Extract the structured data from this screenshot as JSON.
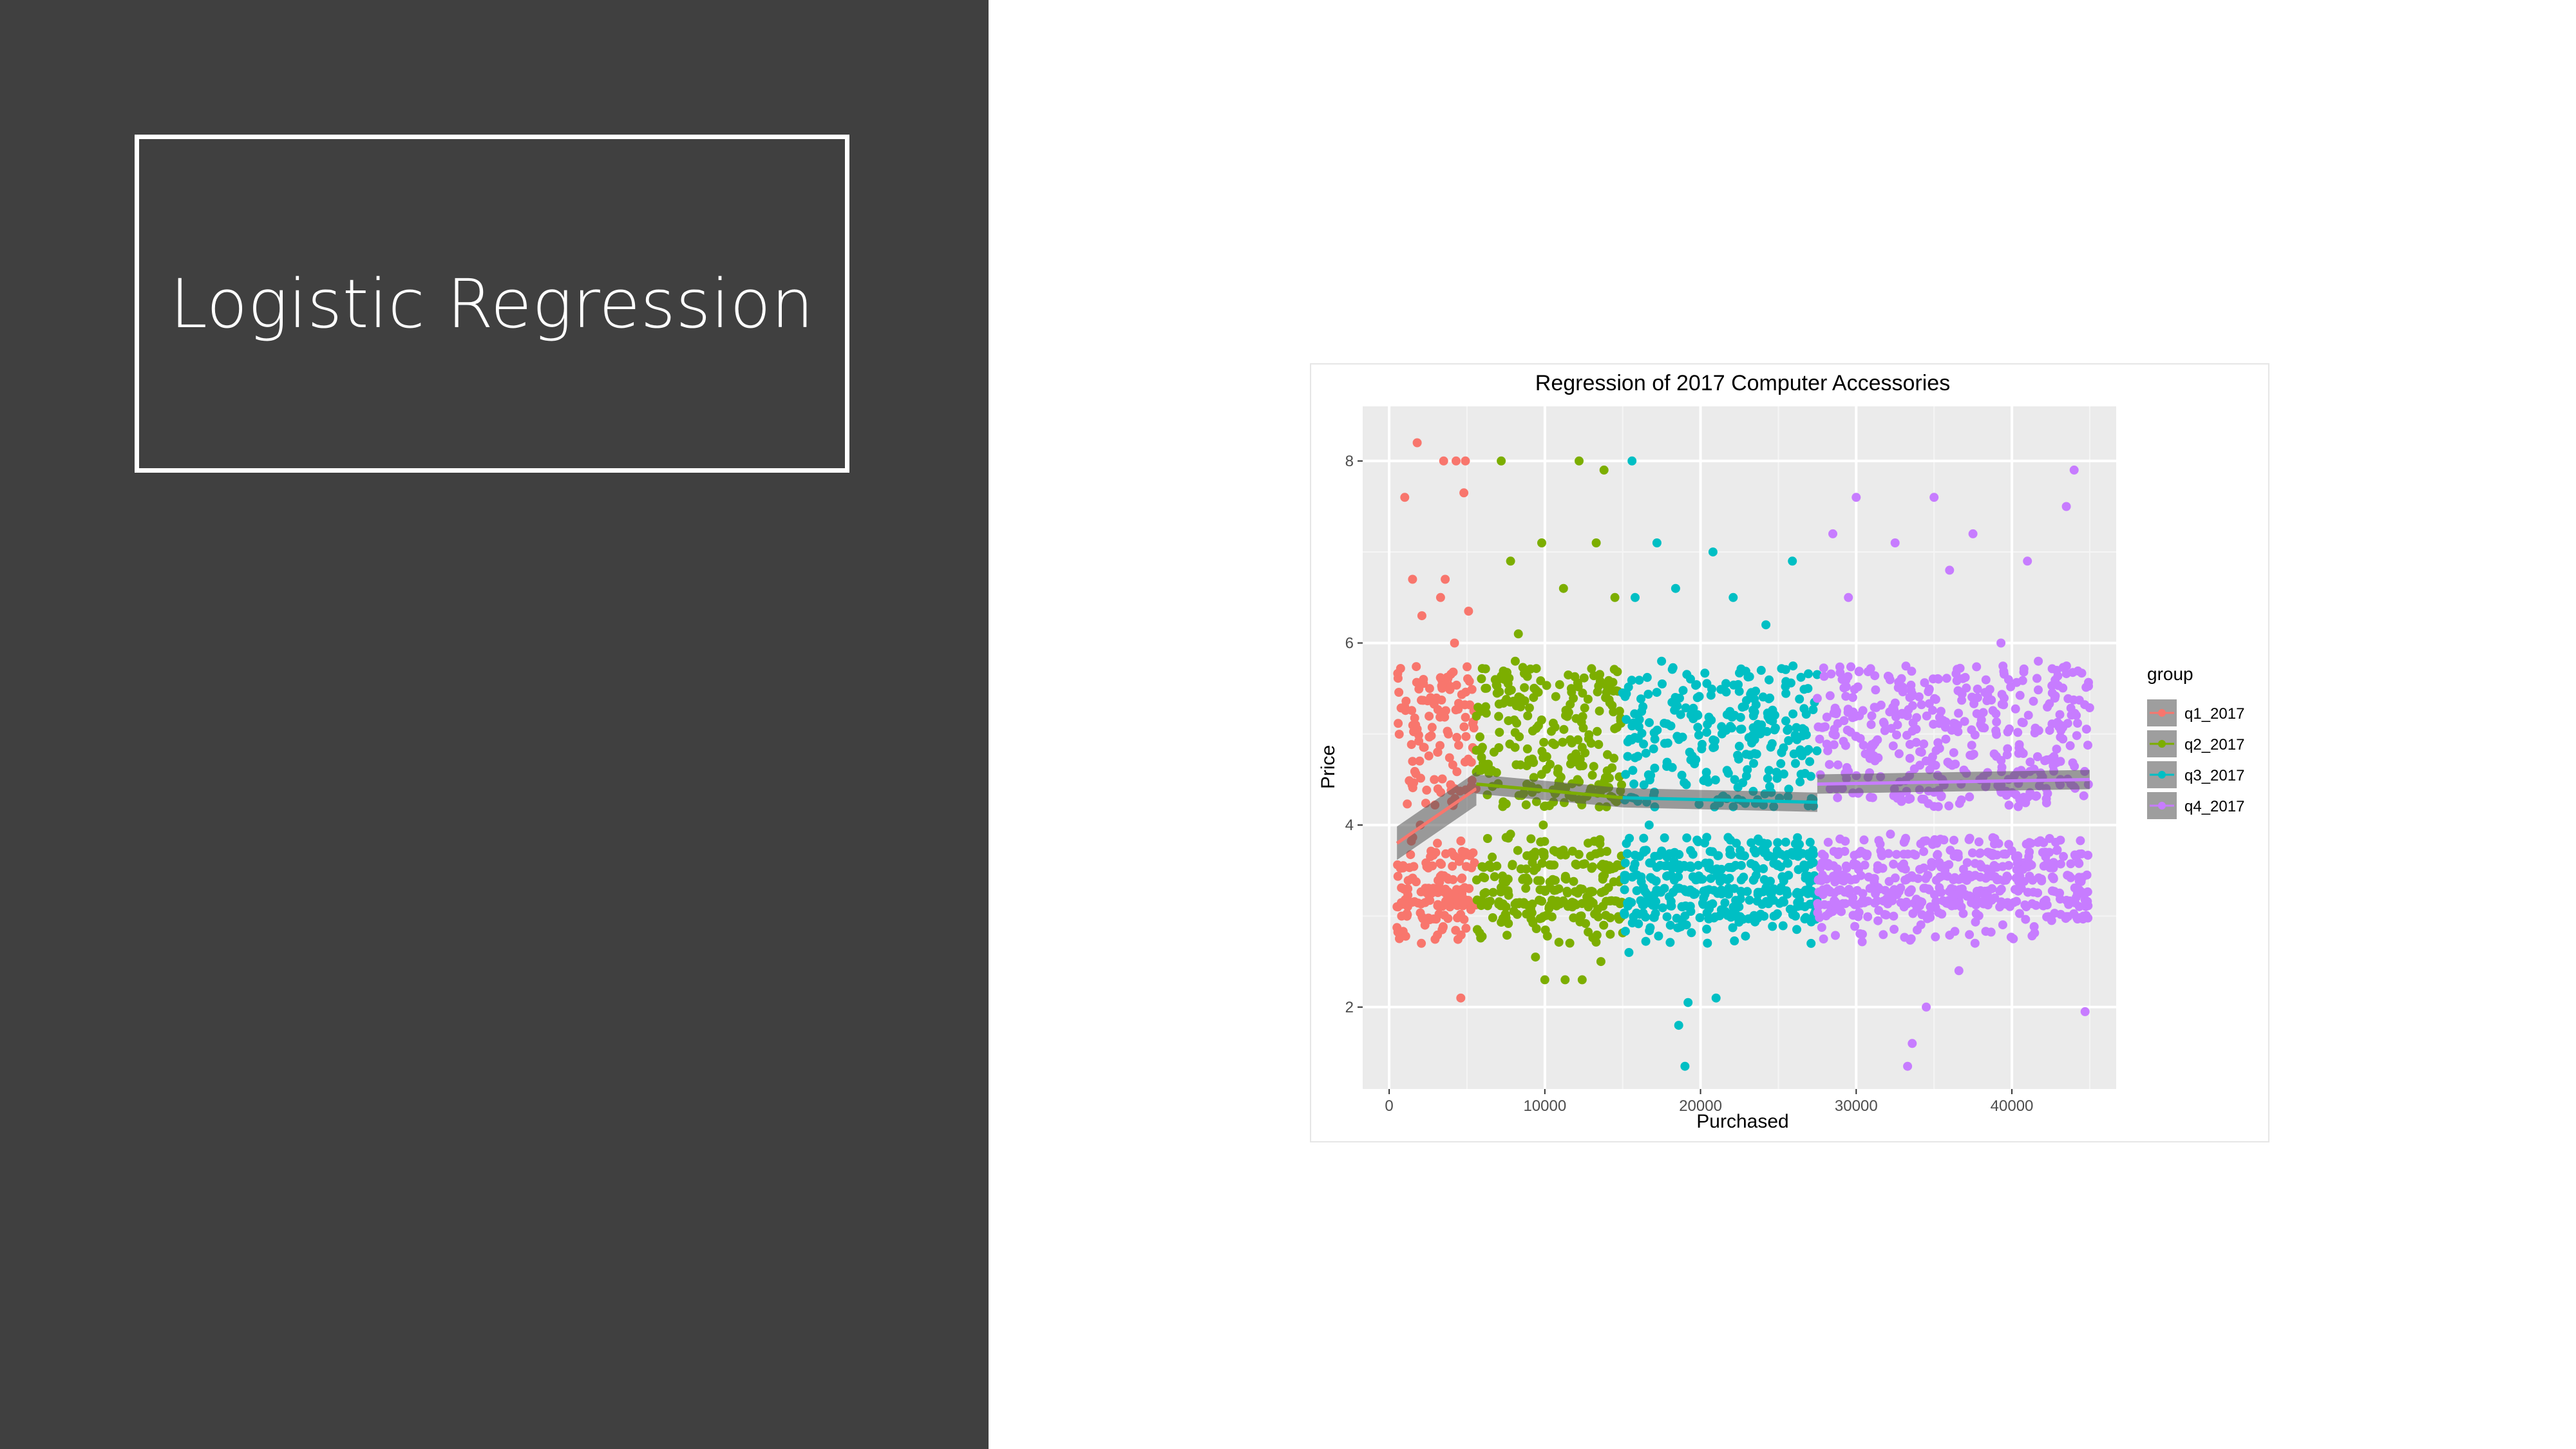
{
  "slide": {
    "title": "Logistic Regression"
  },
  "colors": {
    "left_panel": "#404040",
    "title_text": "#ffffff",
    "plot_bg": "#ebebeb",
    "q1_2017": "#f8766d",
    "q2_2017": "#7cae00",
    "q3_2017": "#00bfc4",
    "q4_2017": "#c77cff"
  },
  "chart_data": {
    "type": "scatter",
    "title": "Regression of 2017 Computer Accessories",
    "xlabel": "Purchased",
    "ylabel": "Price",
    "xlim": [
      -1700,
      46700
    ],
    "ylim": [
      1.1,
      8.6
    ],
    "x_ticks": [
      0,
      10000,
      20000,
      30000,
      40000
    ],
    "x_tick_labels": [
      "0",
      "10000",
      "20000",
      "30000",
      "40000"
    ],
    "y_ticks": [
      2,
      4,
      6,
      8
    ],
    "y_tick_labels": [
      "2",
      "4",
      "6",
      "8"
    ],
    "grid": true,
    "legend": {
      "title": "group",
      "position": "right",
      "entries": [
        "q1_2017",
        "q2_2017",
        "q3_2017",
        "q4_2017"
      ]
    },
    "series": [
      {
        "name": "q1_2017",
        "x_range": [
          500,
          5600
        ],
        "points": [
          [
            1800,
            8.2
          ],
          [
            3500,
            8.0
          ],
          [
            4300,
            8.0
          ],
          [
            4900,
            8.0
          ],
          [
            1000,
            7.6
          ],
          [
            4800,
            7.65
          ],
          [
            2100,
            6.3
          ],
          [
            3300,
            6.5
          ],
          [
            1500,
            6.7
          ],
          [
            3600,
            6.7
          ],
          [
            4200,
            6.0
          ],
          [
            5100,
            6.35
          ],
          [
            4600,
            2.1
          ],
          [
            1000,
            5.3
          ],
          [
            2600,
            5.5
          ],
          [
            3800,
            5.0
          ],
          [
            1500,
            4.7
          ],
          [
            4200,
            4.4
          ],
          [
            2000,
            4.0
          ],
          [
            3100,
            3.8
          ],
          [
            1200,
            3.3
          ],
          [
            3900,
            3.1
          ],
          [
            2300,
            2.9
          ],
          [
            4500,
            3.6
          ],
          [
            1700,
            5.1
          ],
          [
            2900,
            4.5
          ],
          [
            3400,
            2.85
          ],
          [
            800,
            3.0
          ],
          [
            4100,
            3.4
          ],
          [
            2200,
            5.6
          ]
        ],
        "fit": {
          "x": [
            500,
            5600
          ],
          "y": [
            3.8,
            4.4
          ]
        }
      },
      {
        "name": "q2_2017",
        "x_range": [
          5600,
          15000
        ],
        "points": [
          [
            7200,
            8.0
          ],
          [
            12200,
            8.0
          ],
          [
            13800,
            7.9
          ],
          [
            9800,
            7.1
          ],
          [
            13300,
            7.1
          ],
          [
            7800,
            6.9
          ],
          [
            11200,
            6.6
          ],
          [
            14500,
            6.5
          ],
          [
            8300,
            6.1
          ],
          [
            9400,
            2.55
          ],
          [
            10000,
            2.3
          ],
          [
            11300,
            2.3
          ],
          [
            12400,
            2.3
          ],
          [
            13600,
            2.5
          ],
          [
            7400,
            5.6
          ],
          [
            8900,
            5.2
          ],
          [
            10500,
            4.9
          ],
          [
            12100,
            4.5
          ],
          [
            13500,
            4.2
          ],
          [
            6600,
            4.6
          ],
          [
            7800,
            3.9
          ],
          [
            9300,
            3.5
          ],
          [
            10900,
            3.3
          ],
          [
            12800,
            3.1
          ],
          [
            14200,
            2.8
          ],
          [
            6200,
            5.3
          ],
          [
            8100,
            5.8
          ],
          [
            11700,
            5.5
          ],
          [
            13900,
            5.4
          ],
          [
            9900,
            4.0
          ]
        ],
        "fit": {
          "x": [
            5600,
            15000
          ],
          "y": [
            4.45,
            4.3
          ]
        }
      },
      {
        "name": "q3_2017",
        "x_range": [
          15000,
          27500
        ],
        "points": [
          [
            15600,
            8.0
          ],
          [
            17200,
            7.1
          ],
          [
            20800,
            7.0
          ],
          [
            24200,
            6.2
          ],
          [
            25900,
            6.9
          ],
          [
            18400,
            6.6
          ],
          [
            22100,
            6.5
          ],
          [
            15800,
            6.5
          ],
          [
            18600,
            1.8
          ],
          [
            19000,
            1.35
          ],
          [
            19200,
            2.05
          ],
          [
            21000,
            2.1
          ],
          [
            16300,
            5.3
          ],
          [
            17900,
            4.9
          ],
          [
            19800,
            5.4
          ],
          [
            21700,
            4.6
          ],
          [
            23400,
            5.2
          ],
          [
            25200,
            4.8
          ],
          [
            26900,
            5.5
          ],
          [
            16700,
            4.0
          ],
          [
            18300,
            3.6
          ],
          [
            20200,
            3.2
          ],
          [
            22300,
            3.8
          ],
          [
            24100,
            3.4
          ],
          [
            26100,
            3.0
          ],
          [
            15400,
            2.6
          ],
          [
            27100,
            2.7
          ],
          [
            20900,
            4.2
          ],
          [
            23900,
            5.7
          ],
          [
            17500,
            5.8
          ]
        ],
        "fit": {
          "x": [
            15000,
            27500
          ],
          "y": [
            4.3,
            4.25
          ]
        }
      },
      {
        "name": "q4_2017",
        "x_range": [
          27500,
          45000
        ],
        "points": [
          [
            44000,
            7.9
          ],
          [
            30000,
            7.6
          ],
          [
            35000,
            7.6
          ],
          [
            43500,
            7.5
          ],
          [
            28500,
            7.2
          ],
          [
            32500,
            7.1
          ],
          [
            37500,
            7.2
          ],
          [
            41000,
            6.9
          ],
          [
            29500,
            6.5
          ],
          [
            36000,
            6.8
          ],
          [
            33300,
            1.35
          ],
          [
            33600,
            1.6
          ],
          [
            34500,
            2.0
          ],
          [
            44700,
            1.95
          ],
          [
            31000,
            5.2
          ],
          [
            34200,
            4.8
          ],
          [
            37800,
            5.4
          ],
          [
            40600,
            4.6
          ],
          [
            43100,
            5.1
          ],
          [
            28800,
            4.3
          ],
          [
            32200,
            3.9
          ],
          [
            35700,
            3.5
          ],
          [
            38900,
            3.2
          ],
          [
            42400,
            3.7
          ],
          [
            44600,
            3.0
          ],
          [
            30400,
            2.8
          ],
          [
            36600,
            2.4
          ],
          [
            41700,
            5.8
          ],
          [
            39300,
            6.0
          ],
          [
            29100,
            5.6
          ]
        ],
        "fit": {
          "x": [
            27500,
            45000
          ],
          "y": [
            4.45,
            4.5
          ]
        }
      }
    ]
  }
}
